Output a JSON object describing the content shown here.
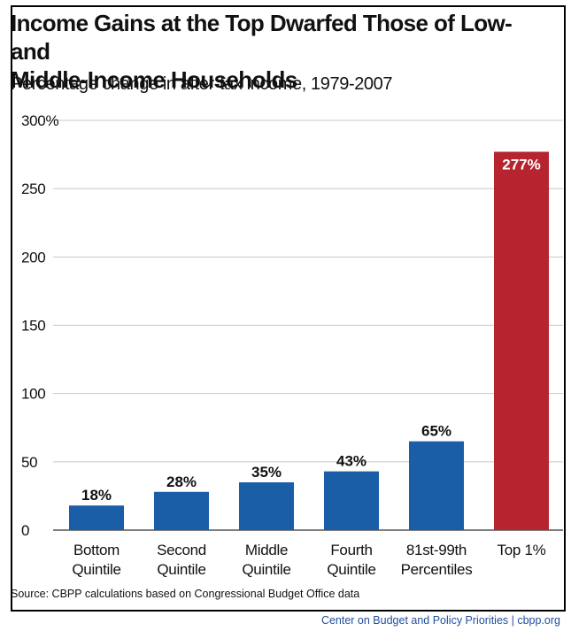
{
  "header": {
    "title_line1": "Income Gains at the Top Dwarfed Those of Low- and",
    "title_line2": "Middle-Income Households",
    "subtitle": "Percentage change in after-tax income, 1979-2007"
  },
  "footer": {
    "source": "Source: CBPP calculations based on Congressional Budget Office data",
    "credit": "Center on Budget and Policy Priorities | cbpp.org"
  },
  "colors": {
    "bar_default": "#1a5ea8",
    "bar_highlight": "#b5242f",
    "grid": "#c8c8c8",
    "credit_text": "#1f4e9e"
  },
  "chart_data": {
    "type": "bar",
    "categories": [
      [
        "Bottom",
        "Quintile"
      ],
      [
        "Second",
        "Quintile"
      ],
      [
        "Middle",
        "Quintile"
      ],
      [
        "Fourth",
        "Quintile"
      ],
      [
        "81st-99th",
        "Percentiles"
      ],
      [
        "Top 1%"
      ]
    ],
    "values": [
      18,
      28,
      35,
      43,
      65,
      277
    ],
    "data_labels": [
      "18%",
      "28%",
      "35%",
      "43%",
      "65%",
      "277%"
    ],
    "highlight_index": 5,
    "ylim": [
      0,
      300
    ],
    "yticks": [
      0,
      50,
      100,
      150,
      200,
      250,
      300
    ],
    "ytick_labels": [
      "0",
      "50",
      "100",
      "150",
      "200",
      "250",
      "300%"
    ],
    "grid": true,
    "xlabel": "",
    "ylabel": ""
  }
}
